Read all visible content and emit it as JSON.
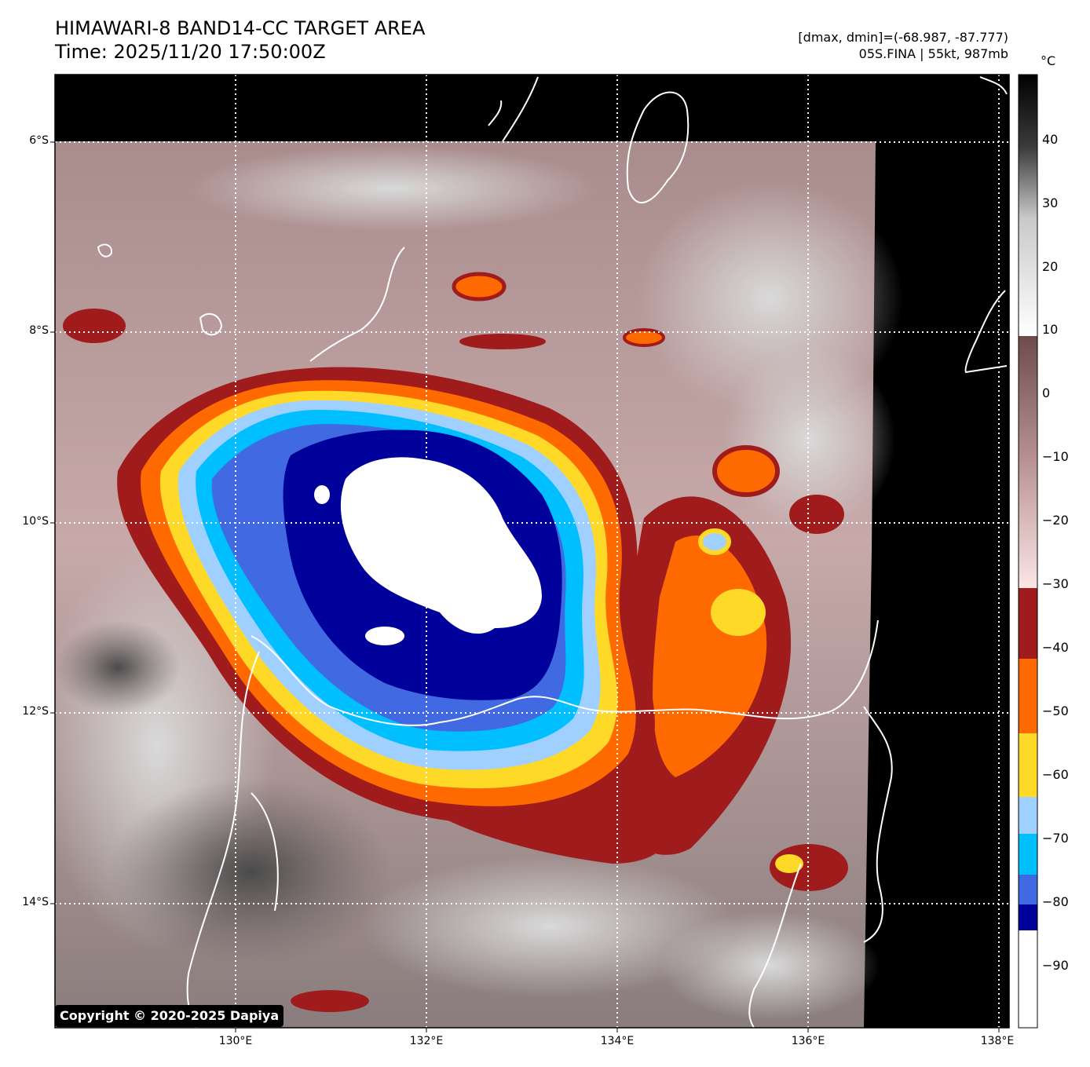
{
  "title": {
    "line1": "HIMAWARI-8 BAND14-CC TARGET AREA",
    "line2": "Time: 2025/11/20 17:50:00Z"
  },
  "info": {
    "range": "[dmax, dmin]=(-68.987, -87.777)",
    "storm": "05S.FINA | 55kt, 987mb"
  },
  "axes": {
    "lat_labels": [
      "6°S",
      "8°S",
      "10°S",
      "12°S",
      "14°S"
    ],
    "lon_labels": [
      "130°E",
      "132°E",
      "134°E",
      "136°E",
      "138°E"
    ]
  },
  "colorbar": {
    "unit": "°C",
    "ticks": [
      "40",
      "30",
      "20",
      "10",
      "0",
      "−10",
      "−20",
      "−30",
      "−40",
      "−50",
      "−60",
      "−70",
      "−80",
      "−90"
    ],
    "colors": {
      "black": "#000000",
      "gray_dark": "#3c3c3c",
      "gray_light": "#e6e6e6",
      "brown": "#7a5555",
      "pink": "#f3dada",
      "red": "#a01c1c",
      "orange": "#ff6a00",
      "yellow": "#ffd928",
      "light_blue": "#9fd0ff",
      "cyan": "#00bfff",
      "royal_blue": "#4169e1",
      "navy": "#00009a",
      "white": "#ffffff"
    }
  },
  "copyright": "Copyright © 2020-2025 Dapiya"
}
